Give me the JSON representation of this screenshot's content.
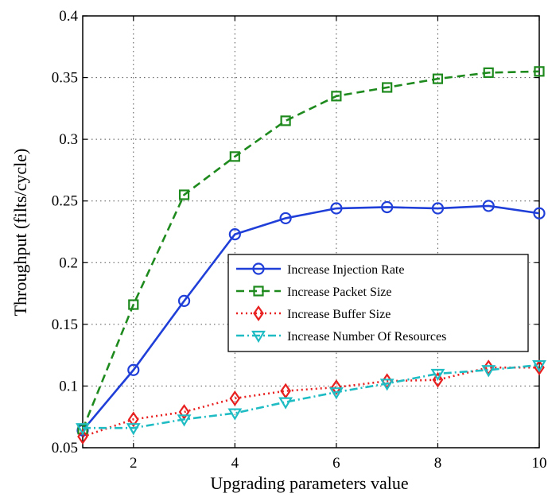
{
  "chart_data": {
    "type": "line",
    "xlabel": "Upgrading parameters value",
    "ylabel": "Throughput (filts/cycle)",
    "xlim": [
      1,
      10
    ],
    "ylim": [
      0.05,
      0.4
    ],
    "xticks": [
      2,
      4,
      6,
      8,
      10
    ],
    "yticks": [
      0.05,
      0.1,
      0.15,
      0.2,
      0.25,
      0.3,
      0.35,
      0.4
    ],
    "grid": true,
    "legend_position": "center-right",
    "x": [
      1,
      2,
      3,
      4,
      5,
      6,
      7,
      8,
      9,
      10
    ],
    "series": [
      {
        "name": "Increase Injection Rate",
        "color": "#1f3fd8",
        "line": "solid",
        "marker": "circle",
        "values": [
          0.064,
          0.113,
          0.169,
          0.223,
          0.236,
          0.244,
          0.245,
          0.244,
          0.246,
          0.24
        ]
      },
      {
        "name": "Increase Packet Size",
        "color": "#1e8a1e",
        "line": "dashed",
        "marker": "square",
        "values": [
          0.065,
          0.166,
          0.255,
          0.286,
          0.315,
          0.335,
          0.342,
          0.349,
          0.354,
          0.355
        ]
      },
      {
        "name": "Increase Buffer Size",
        "color": "#e82020",
        "line": "dotted",
        "marker": "diamond",
        "values": [
          0.059,
          0.073,
          0.079,
          0.09,
          0.096,
          0.099,
          0.104,
          0.105,
          0.115,
          0.115
        ]
      },
      {
        "name": "Increase Number Of Resources",
        "color": "#1fbcc4",
        "line": "dashdot",
        "marker": "triangle-down",
        "values": [
          0.066,
          0.066,
          0.073,
          0.078,
          0.087,
          0.095,
          0.102,
          0.11,
          0.113,
          0.117
        ]
      }
    ]
  }
}
